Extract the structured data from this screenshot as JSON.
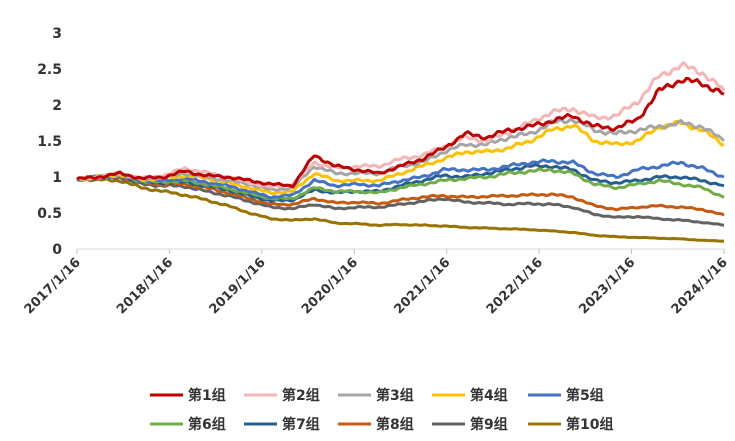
{
  "chart_data": {
    "type": "line",
    "title": "",
    "xlabel": "",
    "ylabel": "",
    "ylim": [
      0,
      3
    ],
    "y_ticks": [
      "0",
      "0.5",
      "1",
      "1.5",
      "2",
      "2.5",
      "3"
    ],
    "x_ticks": [
      "2017/1/16",
      "2018/1/16",
      "2019/1/16",
      "2020/1/16",
      "2021/1/16",
      "2022/1/16",
      "2023/1/16",
      "2024/1/16"
    ],
    "grid": false,
    "legend_position": "bottom",
    "series": [
      {
        "name": "第1组",
        "color": "#C00000",
        "values": [
          0.97,
          1.0,
          1.05,
          0.98,
          1.0,
          1.08,
          1.02,
          1.0,
          0.95,
          0.9,
          0.88,
          1.3,
          1.15,
          1.1,
          1.05,
          1.15,
          1.25,
          1.4,
          1.6,
          1.55,
          1.65,
          1.7,
          1.78,
          1.85,
          1.7,
          1.68,
          1.8,
          2.2,
          2.35,
          2.3,
          2.15
        ]
      },
      {
        "name": "第2组",
        "color": "#F4B6B6",
        "values": [
          0.97,
          1.0,
          1.05,
          0.98,
          1.02,
          1.12,
          1.06,
          1.0,
          0.92,
          0.86,
          0.9,
          1.2,
          1.12,
          1.15,
          1.15,
          1.25,
          1.3,
          1.42,
          1.55,
          1.5,
          1.62,
          1.75,
          1.9,
          1.95,
          1.82,
          1.85,
          2.05,
          2.4,
          2.55,
          2.45,
          2.2
        ]
      },
      {
        "name": "第3组",
        "color": "#A5A5A5",
        "values": [
          0.97,
          1.0,
          1.04,
          0.97,
          1.0,
          1.05,
          1.0,
          0.95,
          0.9,
          0.82,
          0.85,
          1.15,
          1.05,
          1.05,
          1.05,
          1.15,
          1.2,
          1.35,
          1.45,
          1.45,
          1.55,
          1.6,
          1.75,
          1.8,
          1.65,
          1.6,
          1.65,
          1.7,
          1.75,
          1.7,
          1.5
        ]
      },
      {
        "name": "第4组",
        "color": "#FFC000",
        "values": [
          0.97,
          1.0,
          1.03,
          0.96,
          0.98,
          1.02,
          0.98,
          0.92,
          0.85,
          0.78,
          0.8,
          1.05,
          0.95,
          0.95,
          0.95,
          1.05,
          1.15,
          1.25,
          1.35,
          1.35,
          1.4,
          1.5,
          1.65,
          1.72,
          1.5,
          1.45,
          1.5,
          1.7,
          1.75,
          1.65,
          1.45
        ]
      },
      {
        "name": "第5组",
        "color": "#4472C4",
        "values": [
          0.97,
          1.0,
          1.02,
          0.95,
          0.95,
          0.98,
          0.93,
          0.88,
          0.8,
          0.72,
          0.75,
          0.95,
          0.88,
          0.9,
          0.88,
          0.95,
          1.0,
          1.1,
          1.1,
          1.1,
          1.15,
          1.2,
          1.22,
          1.2,
          1.05,
          1.0,
          1.1,
          1.15,
          1.2,
          1.12,
          1.0
        ]
      },
      {
        "name": "第6组",
        "color": "#70AD47",
        "values": [
          0.97,
          1.0,
          1.02,
          0.94,
          0.93,
          0.95,
          0.9,
          0.84,
          0.77,
          0.7,
          0.7,
          0.85,
          0.8,
          0.8,
          0.78,
          0.85,
          0.9,
          0.95,
          0.98,
          1.0,
          1.05,
          1.08,
          1.1,
          1.05,
          0.9,
          0.85,
          0.9,
          0.95,
          0.9,
          0.85,
          0.72
        ]
      },
      {
        "name": "第7组",
        "color": "#255E91",
        "values": [
          0.97,
          1.0,
          1.01,
          0.93,
          0.92,
          0.93,
          0.88,
          0.82,
          0.74,
          0.67,
          0.68,
          0.82,
          0.78,
          0.8,
          0.8,
          0.88,
          0.95,
          1.02,
          1.0,
          1.05,
          1.1,
          1.15,
          1.15,
          1.1,
          0.95,
          0.92,
          0.95,
          1.0,
          1.0,
          0.95,
          0.88
        ]
      },
      {
        "name": "第8组",
        "color": "#C55A11",
        "values": [
          0.97,
          0.99,
          1.0,
          0.92,
          0.9,
          0.9,
          0.85,
          0.78,
          0.7,
          0.62,
          0.62,
          0.7,
          0.64,
          0.65,
          0.63,
          0.68,
          0.72,
          0.74,
          0.72,
          0.73,
          0.74,
          0.75,
          0.76,
          0.72,
          0.6,
          0.55,
          0.58,
          0.6,
          0.58,
          0.55,
          0.47
        ]
      },
      {
        "name": "第9组",
        "color": "#636363",
        "values": [
          0.97,
          0.98,
          0.99,
          0.9,
          0.88,
          0.87,
          0.8,
          0.74,
          0.66,
          0.58,
          0.56,
          0.62,
          0.56,
          0.58,
          0.58,
          0.62,
          0.66,
          0.7,
          0.65,
          0.64,
          0.62,
          0.63,
          0.62,
          0.58,
          0.48,
          0.44,
          0.45,
          0.42,
          0.4,
          0.37,
          0.33
        ]
      },
      {
        "name": "第10组",
        "color": "#997300",
        "values": [
          0.97,
          0.96,
          0.95,
          0.85,
          0.8,
          0.75,
          0.68,
          0.6,
          0.5,
          0.42,
          0.4,
          0.42,
          0.36,
          0.35,
          0.33,
          0.34,
          0.33,
          0.32,
          0.3,
          0.29,
          0.28,
          0.27,
          0.25,
          0.23,
          0.19,
          0.17,
          0.16,
          0.15,
          0.14,
          0.12,
          0.11
        ]
      }
    ]
  }
}
